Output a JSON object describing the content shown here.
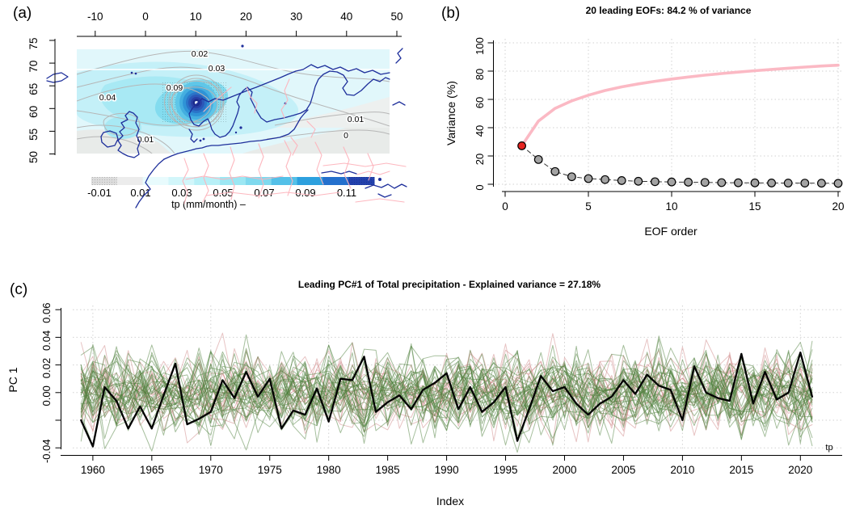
{
  "panels": {
    "a": {
      "label": "(a)"
    },
    "b": {
      "label": "(b)"
    },
    "c": {
      "label": "(c)"
    }
  },
  "chart_data": [
    {
      "panel": "a",
      "type": "heatmap",
      "top_axis_ticks": [
        "-10",
        "0",
        "10",
        "20",
        "30",
        "40",
        "50"
      ],
      "left_axis_ticks": [
        "75",
        "70",
        "65",
        "60",
        "55",
        "50"
      ],
      "contour_labels": [
        "0.02",
        "0.03",
        "0.04",
        "0.09",
        "0.01",
        "0.01",
        "0"
      ],
      "colorbar": {
        "tick_labels": [
          "-0.01",
          "0.01",
          "0.03",
          "0.05",
          "0.07",
          "0.09",
          "0.11"
        ],
        "colors": [
          "#dcdcdc",
          "#ececec",
          "#e8fbfd",
          "#d2f6fa",
          "#b8f0f7",
          "#9ce7f3",
          "#7fd9ee",
          "#54c0e8",
          "#2da0de",
          "#2470cd",
          "#2240ad"
        ],
        "caption": "tp (mm/month)  –"
      },
      "colors": {
        "coastline": "#1e2f9b",
        "borders": "#fdb3bc",
        "contour": "#b6b6b6",
        "fill_levels": [
          "#e1f7fb",
          "#c4f0f8",
          "#a8e9f4",
          "#83dcef"
        ],
        "gray_region": "#e8ebe9",
        "bullseye": [
          "#5fc6e8",
          "#44aee0",
          "#2f93d6",
          "#2a74c8",
          "#2b58b8",
          "#2840a6",
          "#1b2b8c"
        ]
      }
    },
    {
      "panel": "b",
      "type": "scatter",
      "title": "20 leading EOFs:  84.2 % of variance",
      "xlabel": "EOF order",
      "ylabel": "Variance (%)",
      "xticks": [
        "0",
        "5",
        "10",
        "15",
        "20"
      ],
      "yticks": [
        "0",
        "20",
        "40",
        "60",
        "80",
        "100"
      ],
      "xlim": [
        0,
        20
      ],
      "ylim": [
        0,
        100
      ],
      "grid": true,
      "eof_order": [
        1,
        2,
        3,
        4,
        5,
        6,
        7,
        8,
        9,
        10,
        11,
        12,
        13,
        14,
        15,
        16,
        17,
        18,
        19,
        20
      ],
      "variance_pct": [
        27.18,
        17.5,
        9.0,
        5.3,
        4.0,
        3.3,
        2.6,
        2.1,
        1.8,
        1.6,
        1.45,
        1.3,
        1.15,
        1.05,
        0.95,
        0.9,
        0.85,
        0.8,
        0.75,
        0.62
      ],
      "cumulative_pct": [
        27.18,
        44.68,
        53.68,
        58.98,
        62.98,
        66.28,
        68.88,
        70.98,
        72.78,
        74.38,
        75.83,
        77.13,
        78.28,
        79.33,
        80.28,
        81.18,
        82.03,
        82.83,
        83.58,
        84.2
      ],
      "highlight": {
        "eof": 1,
        "color": "#e62320"
      },
      "point_fill": "#a3a3a3",
      "cumulative_color": "#fbb9c4",
      "dash_line_color": "#333333"
    },
    {
      "panel": "c",
      "type": "line",
      "title": "Leading PC#1 of Total precipitation - Explained variance = 27.18%",
      "xlabel": "Index",
      "ylabel": "PC 1",
      "annotation": "tp",
      "xticks": [
        "1960",
        "1965",
        "1970",
        "1975",
        "1980",
        "1985",
        "1990",
        "1995",
        "2000",
        "2005",
        "2010",
        "2015",
        "2020"
      ],
      "xtick_values": [
        1960,
        1965,
        1970,
        1975,
        1980,
        1985,
        1990,
        1995,
        2000,
        2005,
        2010,
        2015,
        2020
      ],
      "grid_decades": [
        1960,
        1970,
        1980,
        1990,
        2000,
        2010,
        2020
      ],
      "ytick_values": [
        0.06,
        0.04,
        0.02,
        0.0,
        -0.02,
        -0.04
      ],
      "ytick_labels": [
        "0.06",
        "0.04",
        "0.02",
        "0.00",
        "",
        "-0.04"
      ],
      "xlim": [
        1959,
        2021
      ],
      "ylim": [
        -0.045,
        0.062
      ],
      "x_start_year": 1959,
      "pc1_black": [
        -0.02,
        -0.039,
        0.004,
        -0.006,
        -0.026,
        -0.01,
        -0.026,
        -0.002,
        0.021,
        -0.023,
        -0.019,
        -0.014,
        0.009,
        -0.004,
        0.015,
        -0.003,
        0.01,
        -0.026,
        -0.013,
        -0.016,
        0.003,
        -0.021,
        0.01,
        0.009,
        0.026,
        -0.014,
        -0.007,
        -0.002,
        -0.012,
        0.002,
        0.007,
        0.014,
        -0.012,
        0.004,
        -0.014,
        -0.007,
        0.004,
        -0.035,
        -0.012,
        0.012,
        0.001,
        0.004,
        -0.008,
        -0.016,
        -0.008,
        -0.003,
        0.009,
        -0.001,
        0.013,
        0.005,
        0.002,
        -0.02,
        0.019,
        0.0,
        -0.004,
        -0.006,
        0.028,
        -0.008,
        0.015,
        -0.005,
        0.0,
        0.029,
        -0.003
      ],
      "ensemble": {
        "green_count": 34,
        "pink_count": 14,
        "green_color": "#4d7f3c",
        "pink_color": "#cf8787",
        "opacity": 0.5,
        "seed": 20230407,
        "sd": 0.0142
      },
      "black_line_color": "#000000"
    }
  ]
}
